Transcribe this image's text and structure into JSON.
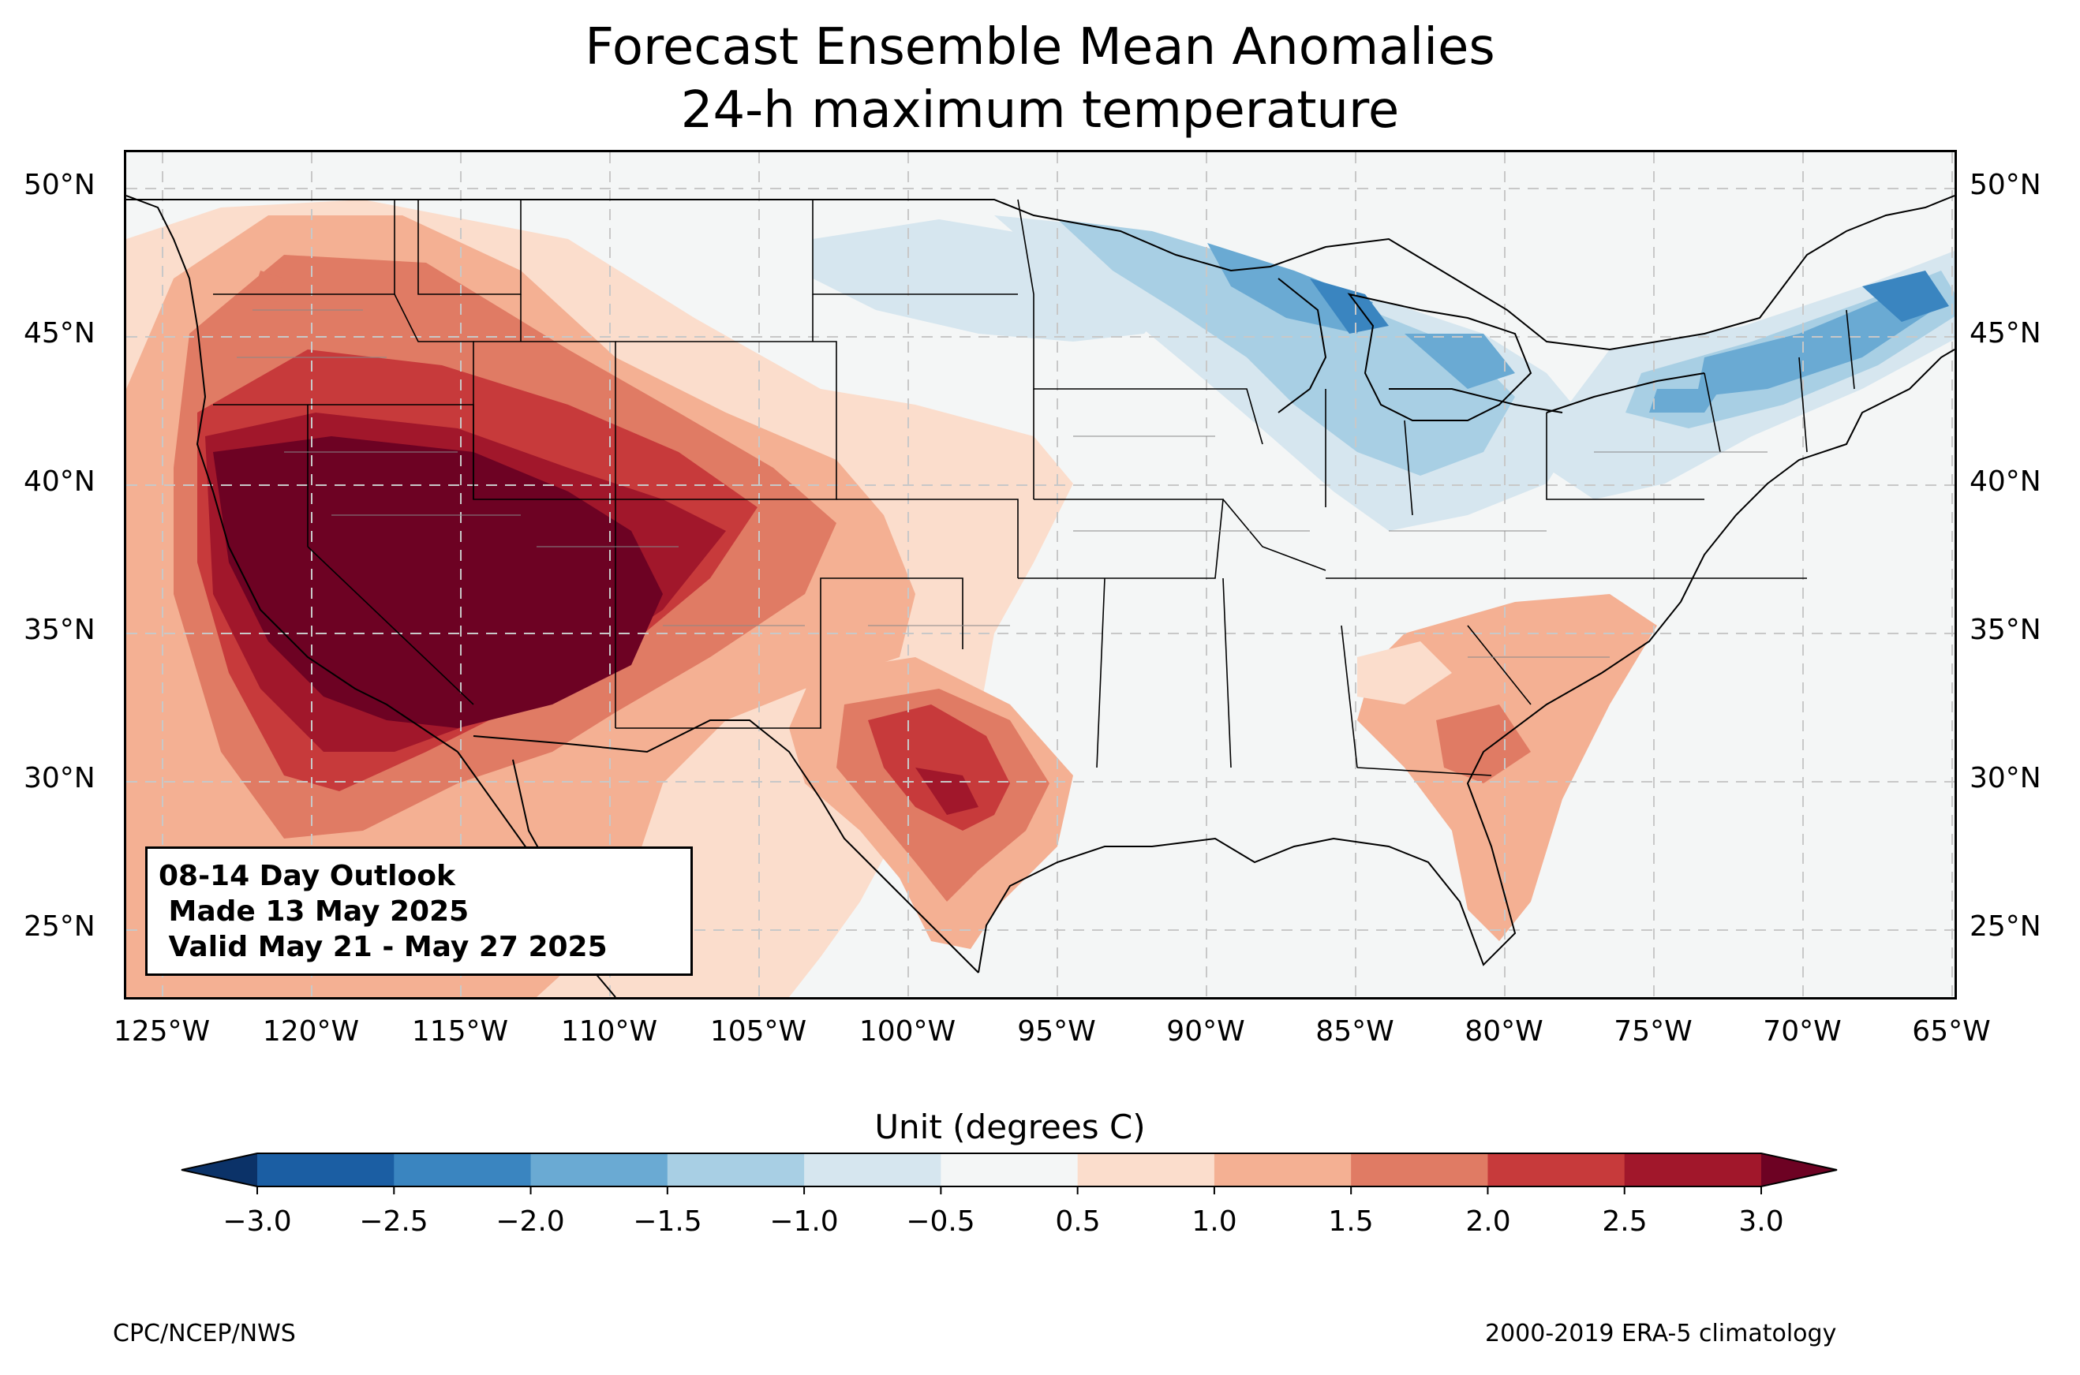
{
  "title_line1": "Forecast Ensemble Mean Anomalies",
  "title_line2": "24-h maximum temperature",
  "lat_labels": [
    "50°N",
    "45°N",
    "40°N",
    "35°N",
    "30°N",
    "25°N"
  ],
  "lon_labels": [
    "125°W",
    "120°W",
    "115°W",
    "110°W",
    "105°W",
    "100°W",
    "95°W",
    "90°W",
    "85°W",
    "80°W",
    "75°W",
    "70°W",
    "65°W"
  ],
  "info_box": {
    "line1": "08-14 Day Outlook",
    "line2": " Made 13 May 2025",
    "line3": " Valid May 21 - May 27 2025"
  },
  "colorbar": {
    "title": "Unit (degrees C)",
    "tick_labels": [
      "−3.0",
      "−2.5",
      "−2.0",
      "−1.5",
      "−1.0",
      "−0.5",
      "0.5",
      "1.0",
      "1.5",
      "2.0",
      "2.5",
      "3.0"
    ],
    "colors": [
      "#1b5ea3",
      "#3a85c0",
      "#6aaad3",
      "#a8cfe4",
      "#d6e6ef",
      "#f4f6f6",
      "#fbddcc",
      "#f4b093",
      "#e07b64",
      "#c73a3b",
      "#a1172b"
    ],
    "under_color": "#0b3268",
    "over_color": "#6d0223"
  },
  "footer_left": "CPC/NCEP/NWS",
  "footer_right": "2000-2019 ERA-5 climatology"
}
